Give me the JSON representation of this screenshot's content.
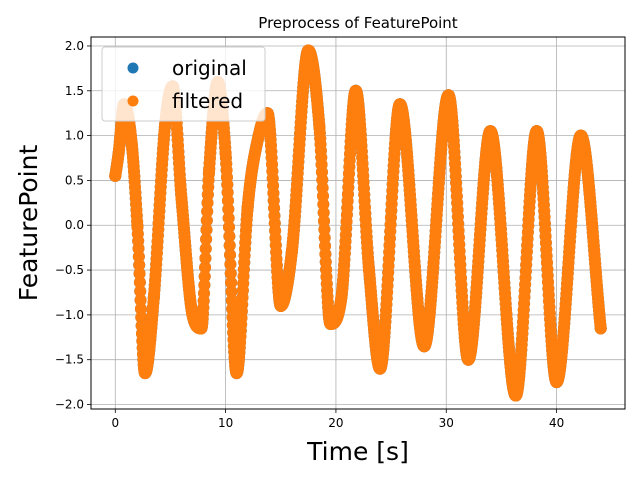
{
  "chart_data": {
    "type": "scatter",
    "title": "Preprocess of FeaturePoint",
    "xlabel": "Time [s]",
    "ylabel": "FeaturePoint",
    "xlim": [
      -2.2,
      46.2
    ],
    "ylim": [
      -2.05,
      2.1
    ],
    "xticks": [
      0,
      10,
      20,
      30,
      40
    ],
    "xtick_labels": [
      "0",
      "10",
      "20",
      "30",
      "40"
    ],
    "yticks": [
      -2.0,
      -1.5,
      -1.0,
      -0.5,
      0.0,
      0.5,
      1.0,
      1.5,
      2.0
    ],
    "ytick_labels": [
      "−2.0",
      "−1.5",
      "−1.0",
      "−0.5",
      "0.0",
      "0.5",
      "1.0",
      "1.5",
      "2.0"
    ],
    "grid": true,
    "legend_position": "top-left",
    "series": [
      {
        "name": "original",
        "color": "#1f77b4",
        "x": [
          0.0,
          0.3,
          0.8,
          1.5,
          2.0,
          2.7,
          3.5,
          4.5,
          5.2,
          6.0,
          7.0,
          7.8,
          8.5,
          9.3,
          10.0,
          11.0,
          12.0,
          13.0,
          13.8,
          15.0,
          16.0,
          17.5,
          18.5,
          19.5,
          20.5,
          21.8,
          23.0,
          24.0,
          25.8,
          28.0,
          30.2,
          32.0,
          34.0,
          36.3,
          38.2,
          40.0,
          42.2,
          44.0
        ],
        "y": [
          0.55,
          0.8,
          1.35,
          0.9,
          0.0,
          -1.65,
          -0.8,
          1.1,
          1.55,
          0.3,
          -1.0,
          -1.15,
          0.6,
          1.6,
          0.8,
          -1.65,
          0.2,
          1.0,
          1.25,
          -0.9,
          -0.3,
          1.95,
          1.1,
          -1.1,
          -0.8,
          1.5,
          -0.5,
          -1.6,
          1.35,
          -1.35,
          1.45,
          -1.5,
          1.05,
          -1.9,
          1.05,
          -1.75,
          1.0,
          -1.15
        ]
      },
      {
        "name": "filtered",
        "color": "#ff7f0e",
        "x": [
          0.0,
          0.3,
          0.8,
          1.5,
          2.0,
          2.7,
          3.5,
          4.5,
          5.2,
          6.0,
          7.0,
          7.8,
          8.5,
          9.3,
          10.0,
          11.0,
          12.0,
          13.0,
          13.8,
          15.0,
          16.0,
          17.5,
          18.5,
          19.5,
          20.5,
          21.8,
          23.0,
          24.0,
          25.8,
          28.0,
          30.2,
          32.0,
          34.0,
          36.3,
          38.2,
          40.0,
          42.2,
          44.0
        ],
        "y": [
          0.55,
          0.8,
          1.35,
          0.9,
          0.0,
          -1.65,
          -0.8,
          1.1,
          1.55,
          0.3,
          -1.0,
          -1.15,
          0.6,
          1.6,
          0.8,
          -1.65,
          0.2,
          1.0,
          1.25,
          -0.9,
          -0.3,
          1.95,
          1.1,
          -1.1,
          -0.8,
          1.5,
          -0.5,
          -1.6,
          1.35,
          -1.35,
          1.45,
          -1.5,
          1.05,
          -1.9,
          1.05,
          -1.75,
          1.0,
          -1.15
        ]
      }
    ]
  }
}
